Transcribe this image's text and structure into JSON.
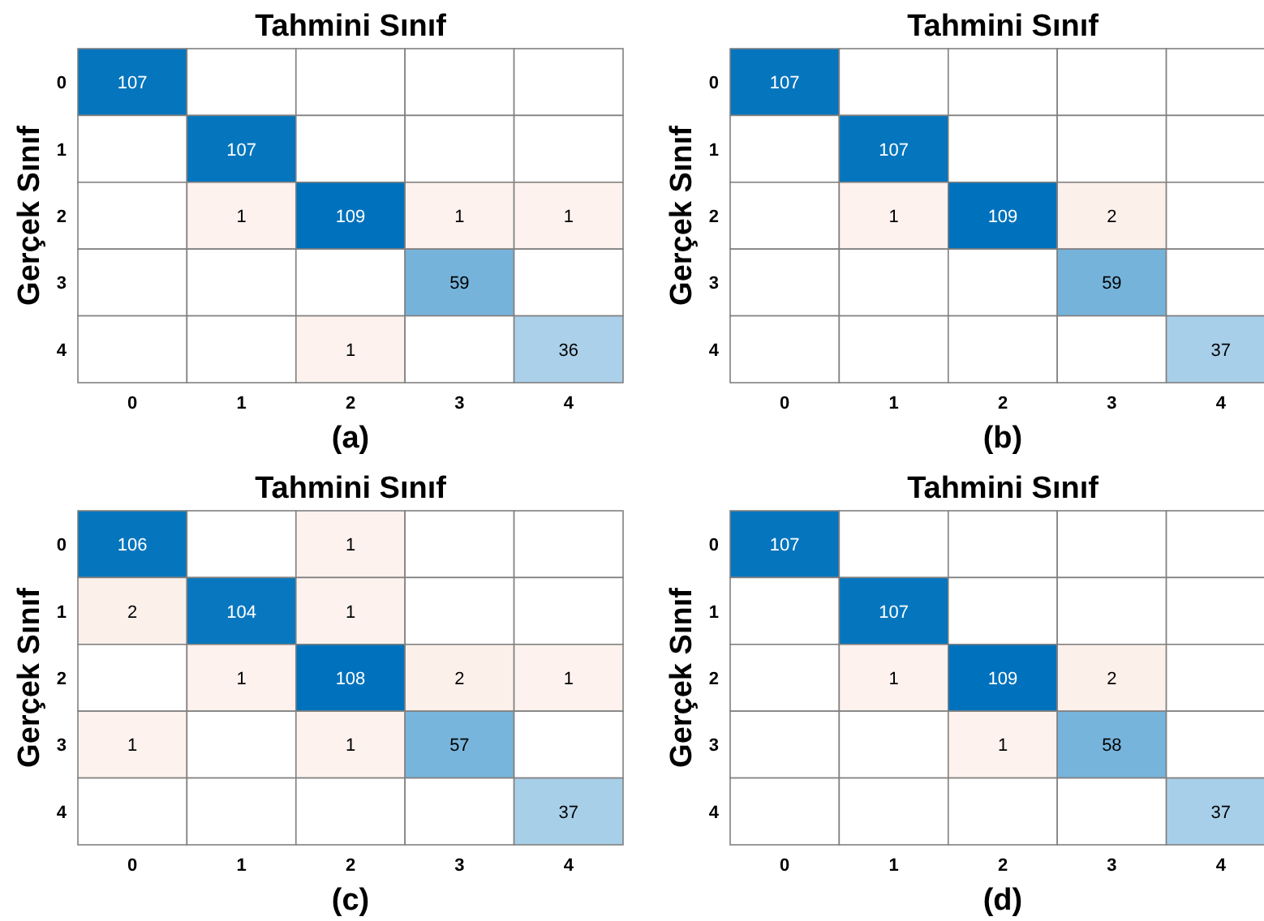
{
  "chart_data": [
    {
      "type": "heatmap",
      "title": "Tahmini Sınıf",
      "ylabel": "Gerçek Sınıf",
      "categories": [
        "0",
        "1",
        "2",
        "3",
        "4"
      ],
      "y_categories": [
        "0",
        "1",
        "2",
        "3",
        "4"
      ],
      "annotations": [
        "(a)"
      ],
      "data_labels": true,
      "cells": [
        [
          107,
          null,
          null,
          null,
          null
        ],
        [
          null,
          107,
          null,
          null,
          null
        ],
        [
          null,
          1,
          109,
          1,
          1
        ],
        [
          null,
          null,
          null,
          59,
          null
        ],
        [
          null,
          null,
          1,
          null,
          36
        ]
      ]
    },
    {
      "type": "heatmap",
      "title": "Tahmini Sınıf",
      "ylabel": "Gerçek Sınıf",
      "categories": [
        "0",
        "1",
        "2",
        "3",
        "4"
      ],
      "y_categories": [
        "0",
        "1",
        "2",
        "3",
        "4"
      ],
      "annotations": [
        "(b)"
      ],
      "data_labels": true,
      "cells": [
        [
          107,
          null,
          null,
          null,
          null
        ],
        [
          null,
          107,
          null,
          null,
          null
        ],
        [
          null,
          1,
          109,
          2,
          null
        ],
        [
          null,
          null,
          null,
          59,
          null
        ],
        [
          null,
          null,
          null,
          null,
          37
        ]
      ]
    },
    {
      "type": "heatmap",
      "title": "Tahmini Sınıf",
      "ylabel": "Gerçek Sınıf",
      "categories": [
        "0",
        "1",
        "2",
        "3",
        "4"
      ],
      "y_categories": [
        "0",
        "1",
        "2",
        "3",
        "4"
      ],
      "annotations": [
        "(c)"
      ],
      "data_labels": true,
      "cells": [
        [
          106,
          null,
          1,
          null,
          null
        ],
        [
          2,
          104,
          1,
          null,
          null
        ],
        [
          null,
          1,
          108,
          2,
          1
        ],
        [
          1,
          null,
          1,
          57,
          null
        ],
        [
          null,
          null,
          null,
          null,
          37
        ]
      ]
    },
    {
      "type": "heatmap",
      "title": "Tahmini Sınıf",
      "ylabel": "Gerçek Sınıf",
      "categories": [
        "0",
        "1",
        "2",
        "3",
        "4"
      ],
      "y_categories": [
        "0",
        "1",
        "2",
        "3",
        "4"
      ],
      "annotations": [
        "(d)"
      ],
      "data_labels": true,
      "cells": [
        [
          107,
          null,
          null,
          null,
          null
        ],
        [
          null,
          107,
          null,
          null,
          null
        ],
        [
          null,
          1,
          109,
          2,
          null
        ],
        [
          null,
          null,
          1,
          58,
          null
        ],
        [
          null,
          null,
          null,
          null,
          37
        ]
      ]
    }
  ]
}
